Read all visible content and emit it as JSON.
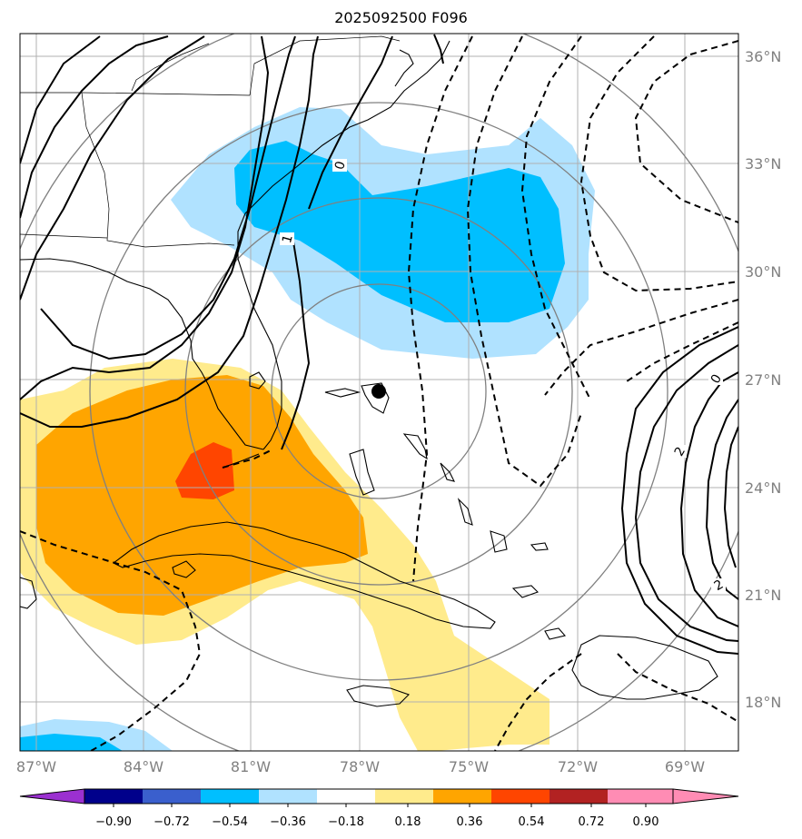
{
  "title": "2025092500 F096",
  "map": {
    "lon_range": [
      -87.5,
      -67.5
    ],
    "lat_range": [
      16.5,
      36.5
    ],
    "lon_ticks": [
      -87,
      -84,
      -81,
      -78,
      -75,
      -72,
      -69
    ],
    "lat_ticks": [
      18,
      21,
      24,
      27,
      30,
      33,
      36
    ],
    "lon_labels": [
      "87°W",
      "84°W",
      "81°W",
      "78°W",
      "75°W",
      "72°W",
      "69°W"
    ],
    "lat_labels": [
      "18°N",
      "21°N",
      "24°N",
      "27°N",
      "30°N",
      "33°N",
      "36°N"
    ],
    "grid": true,
    "storm_marker": {
      "lon": -77.4,
      "lat": 26.6
    },
    "contour_labels": [
      "0",
      "1",
      "0",
      "2",
      "2"
    ]
  },
  "colorbar": {
    "ticks": [
      "−0.90",
      "−0.72",
      "−0.54",
      "−0.36",
      "−0.18",
      "0.18",
      "0.36",
      "0.54",
      "0.72",
      "0.90"
    ],
    "colors": [
      "#9b30d0",
      "#00008b",
      "#3a5fcd",
      "#00bfff",
      "#b0e2ff",
      "#ffffff",
      "#ffeb8c",
      "#ffa500",
      "#ff4500",
      "#b22222",
      "#ff8cb4"
    ]
  }
}
